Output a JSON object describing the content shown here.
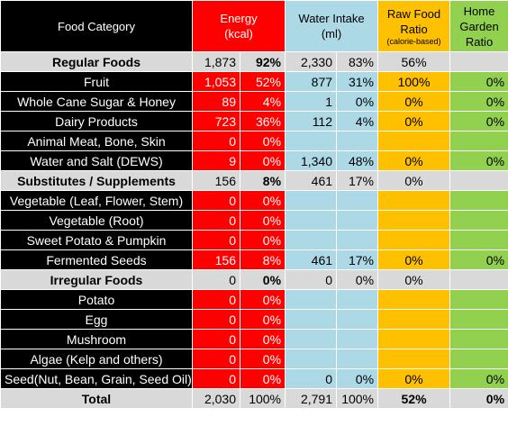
{
  "colors": {
    "energy": "#ff0000",
    "water": "#add8e6",
    "raw": "#ffc000",
    "garden": "#92d050",
    "category_bg": "#000000",
    "group_bg": "#d9d9d9"
  },
  "header": {
    "category": "Food Category",
    "energy_line1": "Energy",
    "energy_line2": "(kcal)",
    "water_line1": "Water Intake",
    "water_line2": "(ml)",
    "raw_line1": "Raw Food",
    "raw_line2": "Ratio",
    "raw_line3": "(calorie-based)",
    "garden_line1": "Home",
    "garden_line2": "Garden",
    "garden_line3": "Ratio"
  },
  "rows": [
    {
      "name": "Regular Foods",
      "type": "group",
      "e": "1,873",
      "ep": "92%",
      "w": "2,330",
      "wp": "83%",
      "raw": "56%",
      "garden": ""
    },
    {
      "name": "Fruit",
      "type": "item",
      "e": "1,053",
      "ep": "52%",
      "w": "877",
      "wp": "31%",
      "raw": "100%",
      "garden": "0%"
    },
    {
      "name": "Whole Cane Sugar & Honey",
      "type": "item",
      "e": "89",
      "ep": "4%",
      "w": "1",
      "wp": "0%",
      "raw": "0%",
      "garden": "0%"
    },
    {
      "name": "Dairy Products",
      "type": "item",
      "e": "723",
      "ep": "36%",
      "w": "112",
      "wp": "4%",
      "raw": "0%",
      "garden": "0%"
    },
    {
      "name": "Animal Meat, Bone, Skin",
      "type": "item",
      "e": "0",
      "ep": "0%",
      "w": "",
      "wp": "",
      "raw": "",
      "garden": ""
    },
    {
      "name": "Water and Salt (DEWS)",
      "type": "item",
      "e": "9",
      "ep": "0%",
      "w": "1,340",
      "wp": "48%",
      "raw": "0%",
      "garden": "0%"
    },
    {
      "name": "Substitutes / Supplements",
      "type": "group",
      "e": "156",
      "ep": "8%",
      "w": "461",
      "wp": "17%",
      "raw": "0%",
      "garden": ""
    },
    {
      "name": "Vegetable (Leaf, Flower, Stem)",
      "type": "item",
      "e": "0",
      "ep": "0%",
      "w": "",
      "wp": "",
      "raw": "",
      "garden": ""
    },
    {
      "name": "Vegetable (Root)",
      "type": "item",
      "e": "0",
      "ep": "0%",
      "w": "",
      "wp": "",
      "raw": "",
      "garden": ""
    },
    {
      "name": "Sweet Potato & Pumpkin",
      "type": "item",
      "e": "0",
      "ep": "0%",
      "w": "",
      "wp": "",
      "raw": "",
      "garden": ""
    },
    {
      "name": "Fermented Seeds",
      "type": "item",
      "e": "156",
      "ep": "8%",
      "w": "461",
      "wp": "17%",
      "raw": "0%",
      "garden": "0%"
    },
    {
      "name": "Irregular Foods",
      "type": "group",
      "e": "0",
      "ep": "0%",
      "w": "0",
      "wp": "0%",
      "raw": "0%",
      "garden": ""
    },
    {
      "name": "Potato",
      "type": "item",
      "e": "0",
      "ep": "0%",
      "w": "",
      "wp": "",
      "raw": "",
      "garden": ""
    },
    {
      "name": "Egg",
      "type": "item",
      "e": "0",
      "ep": "0%",
      "w": "",
      "wp": "",
      "raw": "",
      "garden": ""
    },
    {
      "name": "Mushroom",
      "type": "item",
      "e": "0",
      "ep": "0%",
      "w": "",
      "wp": "",
      "raw": "",
      "garden": ""
    },
    {
      "name": "Algae (Kelp and others)",
      "type": "item",
      "e": "0",
      "ep": "0%",
      "w": "",
      "wp": "",
      "raw": "",
      "garden": ""
    },
    {
      "name": "Seed(Nut, Bean, Grain, Seed Oil)",
      "type": "item",
      "e": "0",
      "ep": "0%",
      "w": "0",
      "wp": "0%",
      "raw": "0%",
      "garden": "0%"
    }
  ],
  "total": {
    "name": "Total",
    "e": "2,030",
    "ep": "100%",
    "w": "2,791",
    "wp": "100%",
    "raw": "52%",
    "garden": "0%"
  }
}
